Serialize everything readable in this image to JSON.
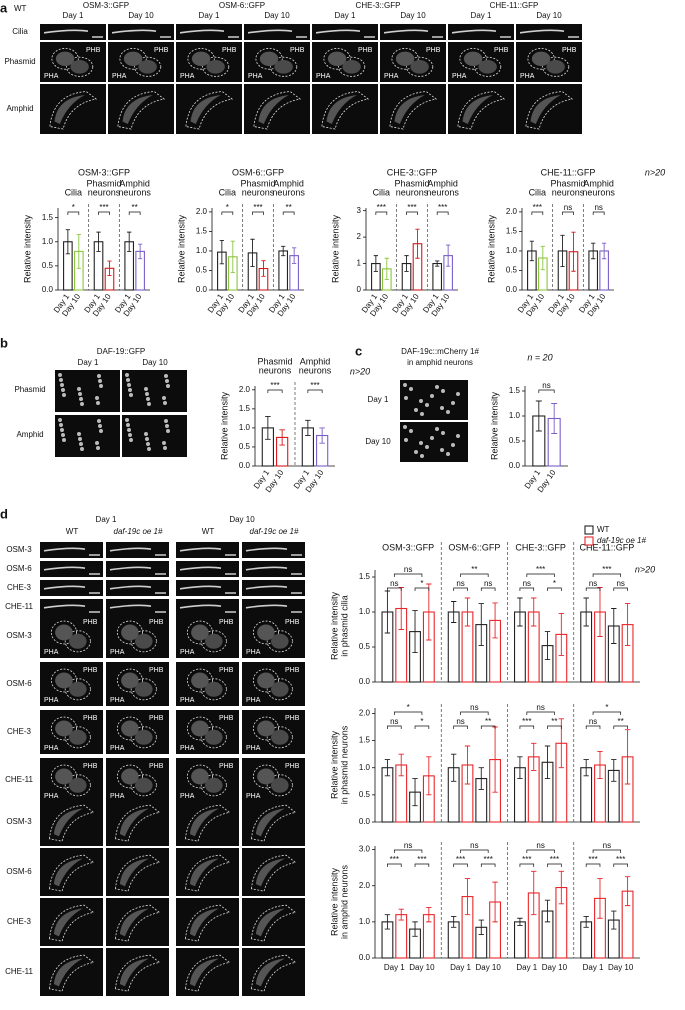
{
  "panel_labels": [
    "a",
    "b",
    "c",
    "d"
  ],
  "images": {
    "a": {
      "strain": "WT",
      "columns": [
        "OSM-3::GFP",
        "OSM-6::GFP",
        "CHE-3::GFP",
        "CHE-11::GFP"
      ],
      "days": [
        "Day 1",
        "Day 10"
      ],
      "rows": [
        "Cilia",
        "Phasmid",
        "Amphid"
      ]
    },
    "b": {
      "title": "DAF-19::GFP",
      "days": [
        "Day 1",
        "Day 10"
      ],
      "rows": [
        "Phasmid",
        "Amphid"
      ]
    },
    "c": {
      "title": [
        "DAF-19c::mCherry 1#",
        "in amphid neurons"
      ],
      "rows": [
        "Day 1",
        "Day 10"
      ]
    },
    "d": {
      "days": [
        "Day 1",
        "Day 10"
      ],
      "columns": [
        "WT",
        "daf-19c oe 1#"
      ],
      "rows": [
        "OSM-3",
        "OSM-6",
        "CHE-3",
        "CHE-11"
      ]
    }
  },
  "neuron_labels": [
    "PHA",
    "PHB"
  ],
  "chart_data": [
    {
      "type": "bar",
      "title": "OSM-3::GFP",
      "groups": [
        [
          "Cilia"
        ],
        [
          "Phasmid",
          "neurons"
        ],
        [
          "Amphid",
          "neurons"
        ]
      ],
      "ylabel": "Relative intensity",
      "categories": [
        "Day 1",
        "Day 10",
        "Day 1",
        "Day 10",
        "Day 1",
        "Day 10"
      ],
      "values": [
        1.0,
        0.8,
        1.0,
        0.45,
        1.0,
        0.8
      ],
      "errors": [
        0.25,
        0.35,
        0.2,
        0.15,
        0.2,
        0.15
      ],
      "colors": [
        "#222222",
        "#8cc63f",
        "#222222",
        "#d7191c",
        "#222222",
        "#7b5fc7"
      ],
      "ylim": [
        0,
        1.7
      ],
      "yticks": [
        {
          "value": 0,
          "label": "0.0"
        },
        0.5,
        {
          "value": 1,
          "label": "1.0"
        },
        1.5
      ],
      "annotations": [
        "*",
        "***",
        "**"
      ]
    },
    {
      "type": "bar",
      "title": "OSM-6::GFP",
      "groups": [
        [
          "Cilia"
        ],
        [
          "Phasmid",
          "neurons"
        ],
        [
          "Amphid",
          "neurons"
        ]
      ],
      "ylabel": "Relative intensity",
      "categories": [
        "Day 1",
        "Day 10",
        "Day 1",
        "Day 10",
        "Day 1",
        "Day 10"
      ],
      "values": [
        0.97,
        0.85,
        0.95,
        0.55,
        1.0,
        0.88
      ],
      "errors": [
        0.3,
        0.4,
        0.35,
        0.2,
        0.12,
        0.2
      ],
      "colors": [
        "#222222",
        "#8cc63f",
        "#222222",
        "#d7191c",
        "#222222",
        "#7b5fc7"
      ],
      "ylim": [
        0,
        2.1
      ],
      "yticks": [
        {
          "value": 0,
          "label": "0.0"
        },
        0.5,
        {
          "value": 1,
          "label": "1.0"
        },
        1.5,
        {
          "value": 2,
          "label": "2.0"
        }
      ],
      "annotations": [
        "*",
        "***",
        "**"
      ]
    },
    {
      "type": "bar",
      "title": "CHE-3::GFP",
      "groups": [
        [
          "Cilia"
        ],
        [
          "Phasmid",
          "neurons"
        ],
        [
          "Amphid",
          "neurons"
        ]
      ],
      "ylabel": "Relative intensity",
      "categories": [
        "Day 1",
        "Day 10",
        "Day 1",
        "Day 10",
        "Day 1",
        "Day 10"
      ],
      "values": [
        1.0,
        0.8,
        1.0,
        1.75,
        1.0,
        1.3
      ],
      "errors": [
        0.3,
        0.4,
        0.3,
        0.55,
        0.1,
        0.4
      ],
      "colors": [
        "#222222",
        "#8cc63f",
        "#222222",
        "#d7191c",
        "#222222",
        "#7b5fc7"
      ],
      "ylim": [
        0,
        3.1
      ],
      "yticks": [
        0,
        1,
        2,
        3
      ],
      "annotations": [
        "***",
        "***",
        "***"
      ]
    },
    {
      "type": "bar",
      "title": "CHE-11::GFP",
      "groups": [
        [
          "Cilia"
        ],
        [
          "Phasmid",
          "neurons"
        ],
        [
          "Amphid",
          "neurons"
        ]
      ],
      "ylabel": "Relative intensity",
      "categories": [
        "Day 1",
        "Day 10",
        "Day 1",
        "Day 10",
        "Day 1",
        "Day 10"
      ],
      "values": [
        1.0,
        0.82,
        1.0,
        0.98,
        1.0,
        1.0
      ],
      "errors": [
        0.25,
        0.3,
        0.4,
        0.5,
        0.2,
        0.2
      ],
      "colors": [
        "#222222",
        "#8cc63f",
        "#222222",
        "#d7191c",
        "#222222",
        "#7b5fc7"
      ],
      "ylim": [
        0,
        2.1
      ],
      "yticks": [
        {
          "value": 0,
          "label": "0.0"
        },
        0.5,
        {
          "value": 1,
          "label": "1.0"
        },
        1.5,
        {
          "value": 2,
          "label": "2.0"
        }
      ],
      "annotations": [
        "***",
        "ns",
        "ns"
      ],
      "note": "n>20"
    },
    {
      "type": "bar",
      "groups": [
        [
          "Phasmid",
          "neurons"
        ],
        [
          "Amphid",
          "neurons"
        ]
      ],
      "ylabel": "Relative intensity",
      "categories": [
        "Day 1",
        "Day 10",
        "Day 1",
        "Day 10"
      ],
      "values": [
        1.0,
        0.75,
        1.0,
        0.8
      ],
      "errors": [
        0.3,
        0.2,
        0.2,
        0.2
      ],
      "colors": [
        "#222222",
        "#d7191c",
        "#222222",
        "#7b5fc7"
      ],
      "ylim": [
        0,
        2.1
      ],
      "yticks": [
        {
          "value": 0,
          "label": "0.0"
        },
        0.5,
        {
          "value": 1,
          "label": "1.0"
        },
        1.5,
        {
          "value": 2,
          "label": "2.0"
        }
      ],
      "annotations": [
        "***",
        "***"
      ],
      "note": "n>20"
    },
    {
      "type": "bar",
      "ylabel": "Relative intensity",
      "categories": [
        "Day 1",
        "Day 10"
      ],
      "values": [
        1.0,
        0.95
      ],
      "errors": [
        0.3,
        0.3
      ],
      "colors": [
        "#222222",
        "#7b5fc7"
      ],
      "ylim": [
        0,
        1.6
      ],
      "yticks": [
        {
          "value": 0,
          "label": "0.0"
        },
        0.5,
        {
          "value": 1,
          "label": "1.0"
        },
        1.5
      ],
      "annotations": [
        "ns"
      ],
      "note": "n = 20"
    },
    {
      "type": "grouped_bar",
      "groups": [
        "OSM-3::GFP",
        "OSM-6::GFP",
        "CHE-3::GFP",
        "CHE-11::GFP"
      ],
      "ylabel": [
        "Relative intensity",
        "in phasmid cilia"
      ],
      "series": [
        {
          "name": "WT",
          "color": "#222222",
          "values": [
            1.0,
            0.72,
            1.0,
            0.82,
            1.0,
            0.52,
            1.0,
            0.8
          ],
          "errors": [
            0.3,
            0.3,
            0.15,
            0.3,
            0.2,
            0.2,
            0.2,
            0.25
          ]
        },
        {
          "name": "daf-19c oe 1#",
          "color": "#e8262a",
          "values": [
            1.05,
            1.0,
            1.0,
            0.88,
            1.0,
            0.68,
            1.0,
            0.82
          ],
          "errors": [
            0.3,
            0.4,
            0.2,
            0.25,
            0.2,
            0.3,
            0.35,
            0.3
          ]
        }
      ],
      "ylim": [
        0,
        1.6
      ],
      "yticks": [
        {
          "value": 0,
          "label": "0.0"
        },
        0.5,
        {
          "value": 1,
          "label": "1.0"
        },
        1.5
      ],
      "annotations": [
        "ns",
        "*",
        "ns",
        "ns",
        "ns",
        "**",
        "ns",
        "*",
        "***",
        "ns",
        "ns",
        "***"
      ],
      "note": "n>20",
      "legend": "upper right"
    },
    {
      "type": "grouped_bar",
      "ylabel": [
        "Relative intensity",
        "in phasmid neurons"
      ],
      "series": [
        {
          "name": "WT",
          "color": "#222222",
          "values": [
            1.0,
            0.55,
            1.0,
            0.8,
            1.0,
            1.1,
            1.0,
            0.95
          ],
          "errors": [
            0.15,
            0.25,
            0.25,
            0.2,
            0.2,
            0.3,
            0.15,
            0.2
          ]
        },
        {
          "name": "daf-19c oe 1#",
          "color": "#e8262a",
          "values": [
            1.05,
            0.85,
            1.05,
            1.15,
            1.2,
            1.45,
            1.05,
            1.2
          ],
          "errors": [
            0.2,
            0.35,
            0.35,
            0.6,
            0.25,
            0.45,
            0.25,
            0.5
          ]
        }
      ],
      "ylim": [
        0,
        2.1
      ],
      "yticks": [
        {
          "value": 0,
          "label": "0.0"
        },
        0.5,
        {
          "value": 1,
          "label": "1.0"
        },
        1.5,
        {
          "value": 2,
          "label": "2.0"
        }
      ],
      "annotations": [
        "ns",
        "*",
        "*",
        "ns",
        "**",
        "ns",
        "***",
        "**",
        "ns",
        "ns",
        "**",
        "*"
      ]
    },
    {
      "type": "grouped_bar",
      "ylabel": [
        "Relative intensity",
        "in amphid neurons"
      ],
      "categories": [
        "Day 1",
        "Day 10",
        "Day 1",
        "Day 10",
        "Day 1",
        "Day 10",
        "Day 1",
        "Day 10"
      ],
      "series": [
        {
          "name": "WT",
          "color": "#222222",
          "values": [
            1.0,
            0.8,
            1.0,
            0.85,
            1.0,
            1.3,
            1.0,
            1.05
          ],
          "errors": [
            0.2,
            0.2,
            0.15,
            0.2,
            0.1,
            0.3,
            0.15,
            0.25
          ]
        },
        {
          "name": "daf-19c oe 1#",
          "color": "#e8262a",
          "values": [
            1.2,
            1.2,
            1.7,
            1.55,
            1.8,
            1.95,
            1.65,
            1.85
          ],
          "errors": [
            0.15,
            0.2,
            0.5,
            0.55,
            0.6,
            0.45,
            0.55,
            0.4
          ]
        }
      ],
      "ylim": [
        0,
        3.1
      ],
      "yticks": [
        {
          "value": 0,
          "label": "0.0"
        },
        {
          "value": 1,
          "label": "1.0"
        },
        {
          "value": 2,
          "label": "2.0"
        },
        {
          "value": 3,
          "label": "3.0"
        }
      ],
      "annotations": [
        "***",
        "***",
        "ns",
        "***",
        "***",
        "ns",
        "***",
        "***",
        "ns",
        "***",
        "***",
        "ns"
      ]
    }
  ]
}
